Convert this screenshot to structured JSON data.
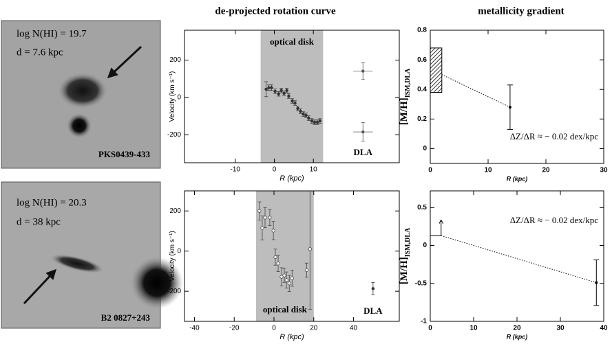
{
  "headers": [
    "de-projected rotation curve",
    "metallicity gradient"
  ],
  "images": [
    {
      "lines": [
        "log N(HI) = 19.7",
        "d = 7.6 kpc"
      ],
      "name": "PKS0439-433"
    },
    {
      "lines": [
        "log N(HI) = 20.3",
        "d = 38 kpc"
      ],
      "name": "B2 0827+243"
    }
  ],
  "chart_data": [
    {
      "type": "scatter",
      "xlabel": "R (kpc)",
      "ylabel": "Velocity (km s⁻¹)",
      "xlim": [
        -23,
        32
      ],
      "xticks": [
        -10,
        0,
        10
      ],
      "ylim": [
        -350,
        360
      ],
      "yticks": [
        -200,
        0,
        200
      ],
      "band": {
        "x": [
          -3.5,
          12.5
        ],
        "label": "optical disk",
        "color": "#bdbdbd"
      },
      "series": [
        {
          "marker": "filled",
          "color": "#333333",
          "x": [
            -2.1,
            -1.4,
            -0.7,
            0.2,
            1.1,
            1.8,
            2.5,
            3.2,
            3.7,
            4.6,
            5.3,
            6.0,
            6.7,
            7.4,
            8.1,
            8.8,
            9.6,
            10.3,
            11.0,
            11.7
          ],
          "values": [
            44,
            52,
            52,
            33,
            19,
            37,
            22,
            37,
            7,
            -19,
            -30,
            -59,
            -74,
            -89,
            -96,
            -111,
            -126,
            -133,
            -133,
            -126
          ],
          "errors": [
            40,
            15,
            15,
            12,
            12,
            12,
            12,
            12,
            12,
            12,
            12,
            12,
            12,
            12,
            12,
            12,
            12,
            12,
            12,
            12
          ]
        },
        {
          "marker": "filled",
          "color": "#555555",
          "label": "DLA",
          "x": [
            22.7,
            22.7
          ],
          "values": [
            141,
            -185
          ],
          "errors": [
            45,
            50
          ],
          "xerrors": [
            2.5,
            2.5
          ]
        }
      ]
    },
    {
      "type": "errorbar",
      "xlabel": "R (kpc)",
      "ylabel": "[M/H]",
      "ylabel_sub": "ISM,DLA",
      "xlim": [
        0,
        30
      ],
      "xticks": [
        0,
        10,
        20,
        30
      ],
      "ylim": [
        -0.1,
        0.8
      ],
      "yticks": [
        0,
        0.2,
        0.4,
        0.6,
        0.8
      ],
      "box": {
        "x": [
          0,
          2
        ],
        "y": [
          0.38,
          0.68
        ]
      },
      "fit": {
        "x": [
          2,
          13.8
        ],
        "y": [
          0.5,
          0.28
        ]
      },
      "x": [
        13.8
      ],
      "values": [
        0.28
      ],
      "errors": [
        0.15
      ],
      "annotation": "ΔZ/ΔR ≈ − 0.02 dex/kpc"
    },
    {
      "type": "scatter",
      "xlabel": "R (kpc)",
      "ylabel": "Velocity (km s⁻¹)",
      "xlim": [
        -45,
        63
      ],
      "xticks": [
        -40,
        -20,
        0,
        20,
        40
      ],
      "ylim": [
        -350,
        300
      ],
      "yticks": [
        -200,
        0,
        200
      ],
      "band": {
        "x": [
          -9,
          20
        ],
        "label": "optical disk",
        "color": "#bdbdbd"
      },
      "series": [
        {
          "marker": "open",
          "color": "#444444",
          "x": [
            -7.3,
            -5.9,
            -4.5,
            -2.1,
            -0.3,
            0.7,
            2.1,
            3.8,
            5.2,
            6.3,
            7.7,
            9.1,
            16.4,
            18.1
          ],
          "values": [
            200,
            115,
            167,
            167,
            102,
            -30,
            -62,
            -128,
            -121,
            -144,
            -161,
            -135,
            -95,
            10
          ],
          "errors": [
            45,
            60,
            50,
            40,
            45,
            40,
            40,
            45,
            35,
            40,
            40,
            40,
            35,
            300
          ]
        },
        {
          "marker": "filled",
          "color": "#333333",
          "label": "DLA",
          "x": [
            49.8
          ],
          "values": [
            -187
          ],
          "errors": [
            30
          ]
        }
      ]
    },
    {
      "type": "errorbar",
      "xlabel": "R (kpc)",
      "ylabel": "[M/H]",
      "ylabel_sub": "ISM,DLA",
      "xlim": [
        0,
        40
      ],
      "xticks": [
        0,
        10,
        20,
        30,
        40
      ],
      "ylim": [
        -1,
        0.72
      ],
      "yticks": [
        -1,
        -0.5,
        0,
        0.5
      ],
      "limit": {
        "x": 2.5,
        "y": 0.13
      },
      "fit": {
        "x": [
          2.5,
          38.3
        ],
        "y": [
          0.13,
          -0.49
        ]
      },
      "x": [
        38.3
      ],
      "values": [
        -0.49
      ],
      "errors": [
        0.3
      ],
      "annotation": "ΔZ/ΔR ≈ − 0.02 dex/kpc"
    }
  ]
}
